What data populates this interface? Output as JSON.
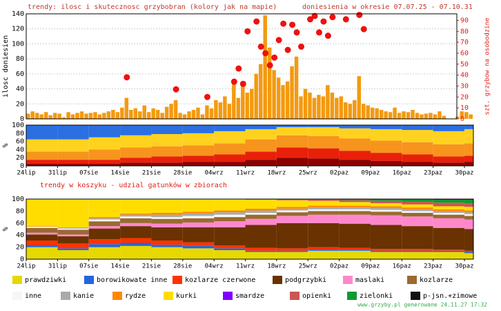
{
  "chart_data": [
    {
      "type": "bar",
      "title": "trendy: ilosc i skutecznosc grzybobran (kolory jak na mapie)",
      "subtitle": "doniesienia w okresie 07.07.25 - 07.10.31",
      "ylabel": "ilosc doniesien",
      "y2label": "szt. grzybow na osobodzine",
      "ylim": [
        0,
        140
      ],
      "yticks": [
        0,
        20,
        40,
        60,
        80,
        100,
        120,
        140
      ],
      "y2lim": [
        0,
        96
      ],
      "y2ticks": [
        0,
        10,
        20,
        30,
        40,
        50,
        60,
        70,
        80,
        90
      ],
      "color": "#f39a10",
      "grid": true,
      "values": [
        7,
        10,
        8,
        6,
        9,
        5,
        8,
        7,
        2,
        9,
        6,
        8,
        10,
        7,
        8,
        9,
        6,
        8,
        10,
        12,
        9,
        15,
        28,
        12,
        14,
        10,
        18,
        9,
        14,
        12,
        8,
        16,
        20,
        25,
        8,
        6,
        10,
        12,
        15,
        6,
        18,
        14,
        25,
        22,
        30,
        20,
        52,
        28,
        45,
        35,
        40,
        60,
        73,
        138,
        95,
        65,
        55,
        45,
        50,
        70,
        83,
        30,
        40,
        35,
        28,
        32,
        30,
        45,
        35,
        28,
        30,
        22,
        20,
        25,
        57,
        20,
        18,
        15,
        14,
        12,
        10,
        9,
        15,
        8,
        10,
        9,
        12,
        8,
        6,
        7,
        8,
        6,
        10,
        4,
        0,
        0,
        3,
        10,
        9,
        6
      ],
      "series": [
        {
          "color": "#ee1111",
          "axis": "y2",
          "x": [
            22,
            33,
            40,
            46,
            47,
            48,
            49,
            51,
            52,
            53,
            54,
            55,
            56,
            57,
            58,
            59,
            60,
            61,
            63,
            64,
            65,
            66,
            67,
            68,
            71,
            74,
            75
          ],
          "values": [
            38,
            27,
            20,
            34,
            46,
            32,
            80,
            89,
            66,
            60,
            49,
            56,
            72,
            87,
            63,
            86,
            79,
            66,
            91,
            94,
            79,
            89,
            76,
            93,
            91,
            95,
            82
          ]
        }
      ]
    },
    {
      "type": "stacked-bar",
      "ylabel": "%",
      "grid": true,
      "categories": [
        "24lip",
        "31lip",
        "07sie",
        "14sie",
        "21sie",
        "28sie",
        "04wrz",
        "11wrz",
        "18wrz",
        "25wrz",
        "02paz",
        "09paz",
        "16paz",
        "23paz",
        "30paz"
      ],
      "ylim": [
        0,
        100
      ],
      "yticks": [
        0,
        20,
        40,
        60,
        80,
        100
      ],
      "series": [
        {
          "color": "#8b0000",
          "values": [
            5,
            5,
            5,
            8,
            8,
            10,
            10,
            15,
            20,
            18,
            15,
            12,
            10,
            8,
            10
          ]
        },
        {
          "color": "#e8200a",
          "values": [
            10,
            10,
            10,
            12,
            15,
            15,
            18,
            20,
            25,
            25,
            22,
            20,
            18,
            15,
            15
          ]
        },
        {
          "color": "#f7941d",
          "values": [
            20,
            20,
            25,
            25,
            25,
            25,
            27,
            30,
            30,
            30,
            30,
            30,
            30,
            30,
            30
          ]
        },
        {
          "color": "#ffd21f",
          "values": [
            30,
            30,
            30,
            30,
            30,
            30,
            30,
            25,
            20,
            22,
            25,
            28,
            30,
            32,
            35
          ]
        },
        {
          "color": "#2b6fe0",
          "values": [
            35,
            35,
            30,
            25,
            22,
            20,
            15,
            10,
            5,
            5,
            8,
            10,
            12,
            15,
            10
          ]
        }
      ]
    },
    {
      "type": "stacked-bar",
      "title": "trendy w koszyku - udzial gatunków w zbiorach",
      "ylabel": "%",
      "grid": true,
      "legend": true,
      "categories": [
        "24lip",
        "31lip",
        "07sie",
        "14sie",
        "21sie",
        "28sie",
        "04wrz",
        "11wrz",
        "18wrz",
        "25wrz",
        "02paz",
        "09paz",
        "16paz",
        "23paz",
        "30paz"
      ],
      "ylim": [
        0,
        100
      ],
      "yticks": [
        0,
        20,
        40,
        60,
        80,
        100
      ],
      "series": [
        {
          "name": "prawdziwki",
          "color": "#e6d800",
          "values": [
            20,
            15,
            20,
            22,
            20,
            18,
            15,
            12,
            12,
            14,
            14,
            12,
            12,
            12,
            10
          ]
        },
        {
          "name": "borowikowate inne",
          "color": "#2266dd",
          "values": [
            3,
            3,
            5,
            5,
            4,
            4,
            3,
            2,
            2,
            2,
            2,
            2,
            2,
            2,
            2
          ]
        },
        {
          "name": "kozlarze czerwone",
          "color": "#ff3300",
          "values": [
            8,
            8,
            8,
            8,
            7,
            6,
            5,
            5,
            4,
            4,
            3,
            3,
            3,
            2,
            2
          ]
        },
        {
          "name": "podgrzybki",
          "color": "#6a3200",
          "values": [
            10,
            12,
            18,
            20,
            22,
            25,
            30,
            38,
            42,
            40,
            40,
            40,
            38,
            36,
            36
          ]
        },
        {
          "name": "maslaki",
          "color": "#ff88cc",
          "values": [
            3,
            3,
            4,
            5,
            6,
            8,
            10,
            10,
            12,
            14,
            15,
            16,
            16,
            16,
            16
          ]
        },
        {
          "name": "kozlarze",
          "color": "#9a6a30",
          "values": [
            8,
            8,
            8,
            8,
            8,
            7,
            7,
            7,
            6,
            6,
            6,
            6,
            6,
            6,
            6
          ]
        },
        {
          "name": "inne",
          "color": "#f6f6f6",
          "values": [
            2,
            2,
            3,
            3,
            3,
            4,
            4,
            3,
            3,
            3,
            3,
            3,
            3,
            3,
            3
          ]
        },
        {
          "name": "kanie",
          "color": "#aaaaaa",
          "values": [
            0,
            1,
            2,
            3,
            4,
            4,
            4,
            4,
            3,
            3,
            3,
            3,
            3,
            3,
            3
          ]
        },
        {
          "name": "rydze",
          "color": "#ff8800",
          "values": [
            1,
            1,
            2,
            2,
            3,
            3,
            3,
            3,
            3,
            3,
            3,
            3,
            3,
            3,
            3
          ]
        },
        {
          "name": "kurki",
          "color": "#ffdd00",
          "values": [
            45,
            47,
            30,
            24,
            23,
            21,
            19,
            15,
            11,
            8,
            6,
            5,
            5,
            5,
            6
          ]
        },
        {
          "name": "smardze",
          "color": "#8000ff",
          "values": [
            0,
            0,
            0,
            0,
            0,
            0,
            0,
            0,
            0,
            0,
            0,
            0,
            0,
            0,
            0
          ]
        },
        {
          "name": "opienki",
          "color": "#cc5555",
          "values": [
            0,
            0,
            0,
            0,
            0,
            0,
            0,
            1,
            1,
            2,
            3,
            4,
            5,
            6,
            6
          ]
        },
        {
          "name": "zielonki",
          "color": "#119933",
          "values": [
            0,
            0,
            0,
            0,
            0,
            0,
            0,
            0,
            1,
            1,
            2,
            3,
            4,
            5,
            6
          ]
        },
        {
          "name": "p-jsn.+zimowe",
          "color": "#111111",
          "values": [
            0,
            0,
            0,
            0,
            0,
            0,
            0,
            0,
            0,
            0,
            0,
            0,
            0,
            1,
            1
          ]
        }
      ]
    }
  ],
  "footer": "www.grzyby.pl generowane 24.11.27 17:32"
}
